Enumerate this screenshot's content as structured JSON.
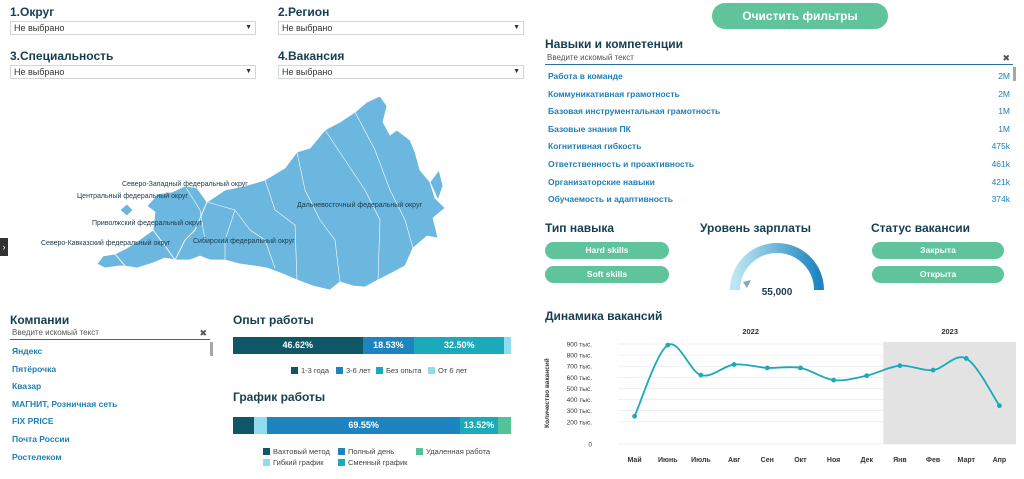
{
  "filters": {
    "okrug": {
      "label": "1.Округ",
      "value": "Не выбрано"
    },
    "region": {
      "label": "2.Регион",
      "value": "Не выбрано"
    },
    "specialty": {
      "label": "3.Специальность",
      "value": "Не выбрано"
    },
    "vacancy": {
      "label": "4.Вакансия",
      "value": "Не выбрано"
    }
  },
  "clear_button": "Очистить фильтры",
  "skills": {
    "title": "Навыки и компетенции",
    "search_placeholder": "Введите искомый текст",
    "items": [
      {
        "label": "Работа в команде",
        "value": "2M"
      },
      {
        "label": "Коммуникативная грамотность",
        "value": "2M"
      },
      {
        "label": "Базовая инструментальная грамотность",
        "value": "1M"
      },
      {
        "label": "Базовые знания ПК",
        "value": "1M"
      },
      {
        "label": "Когнитивная гибкость",
        "value": "475k"
      },
      {
        "label": "Ответственность и проактивность",
        "value": "461k"
      },
      {
        "label": "Организаторские навыки",
        "value": "421k"
      },
      {
        "label": "Обучаемость и адаптивность",
        "value": "374k"
      }
    ]
  },
  "map": {
    "labels": [
      "Северо-Западный федеральный округ",
      "Центральный федеральный округ",
      "Приволжский федеральный округ",
      "Северо-Кавказский федеральный округ",
      "Сибирский федеральный округ",
      "Дальневосточный федеральный округ"
    ],
    "color": "#6cb7df"
  },
  "skill_type": {
    "title": "Тип навыка",
    "options": [
      "Hard skills",
      "Soft skills"
    ]
  },
  "salary": {
    "title": "Уровень зарплаты",
    "value": "55,000"
  },
  "status": {
    "title": "Статус вакансии",
    "options": [
      "Закрыта",
      "Открыта"
    ]
  },
  "companies": {
    "title": "Компании",
    "search_placeholder": "Введите искомый текст",
    "items": [
      "Яндекс",
      "Пятёрочка",
      "Квазар",
      "МАГНИТ, Розничная сеть",
      "FIX PRICE",
      "Почта России",
      "Ростелеком"
    ]
  },
  "experience": {
    "title": "Опыт работы",
    "segments": [
      {
        "label": "46.62%",
        "share": 46.62,
        "color": "#0e5766"
      },
      {
        "label": "18.53%",
        "share": 18.53,
        "color": "#1d84c0"
      },
      {
        "label": "32.50%",
        "share": 32.5,
        "color": "#1aaab9"
      },
      {
        "label": "",
        "share": 2.35,
        "color": "#8fdcef"
      }
    ],
    "legend": [
      {
        "label": "1-3 года",
        "color": "#0e5766"
      },
      {
        "label": "3-6 лет",
        "color": "#1d84c0"
      },
      {
        "label": "Без опыта",
        "color": "#1aaab9"
      },
      {
        "label": "От 6 лет",
        "color": "#8fdcef"
      }
    ]
  },
  "schedule": {
    "title": "График работы",
    "segments": [
      {
        "label": "",
        "share": 7.4,
        "color": "#0e5766"
      },
      {
        "label": "",
        "share": 4.8,
        "color": "#8fdcef"
      },
      {
        "label": "69.55%",
        "share": 69.55,
        "color": "#1d84c0"
      },
      {
        "label": "13.52%",
        "share": 13.52,
        "color": "#1aaab9"
      },
      {
        "label": "",
        "share": 4.73,
        "color": "#55c29a"
      }
    ],
    "legend": [
      {
        "label": "Вахтовый метод",
        "color": "#0e5766"
      },
      {
        "label": "Полный день",
        "color": "#1d84c0"
      },
      {
        "label": "Удаленная работа",
        "color": "#55c29a"
      },
      {
        "label": "Гибкий график",
        "color": "#8fdcef"
      },
      {
        "label": "Сменный график",
        "color": "#1aaab9"
      }
    ]
  },
  "chart_data": {
    "type": "line",
    "title": "Динамика вакансий",
    "ylabel": "Количество вакансий",
    "year_labels": [
      "2022",
      "2023"
    ],
    "categories": [
      "Май",
      "Июнь",
      "Июль",
      "Авг",
      "Сен",
      "Окт",
      "Ноя",
      "Дек",
      "Янв",
      "Фев",
      "Март",
      "Апр"
    ],
    "values": [
      250000,
      890000,
      620000,
      715000,
      685000,
      685000,
      575000,
      615000,
      705000,
      665000,
      770000,
      345000
    ],
    "y_ticks": [
      "0",
      "200 тыс.",
      "300 тыс.",
      "400 тыс.",
      "500 тыс.",
      "600 тыс.",
      "700 тыс.",
      "800 тыс.",
      "900 тыс."
    ],
    "ylim": [
      0,
      900000
    ],
    "color": "#1aaab9",
    "shaded_from": "Янв",
    "grid": true
  }
}
